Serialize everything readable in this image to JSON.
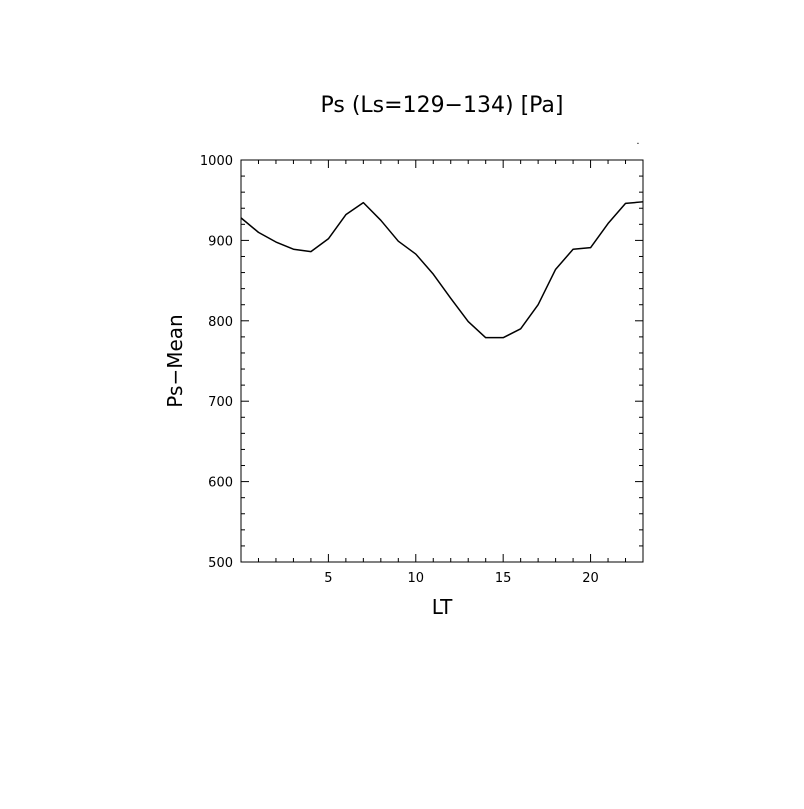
{
  "chart_data": {
    "type": "line",
    "title": "Ps (Ls=129−134) [Pa]",
    "xlabel": "LT",
    "ylabel": "Ps−Mean",
    "xlim": [
      0,
      23
    ],
    "ylim": [
      500,
      1000
    ],
    "x_ticks": [
      5,
      10,
      15,
      20
    ],
    "y_ticks": [
      500,
      600,
      700,
      800,
      900,
      1000
    ],
    "grid": false,
    "series": [
      {
        "x": [
          0,
          1,
          2,
          3,
          4,
          5,
          6,
          7,
          8,
          9,
          10,
          11,
          12,
          13,
          14,
          15,
          16,
          17,
          18,
          19,
          20,
          21,
          22,
          23
        ],
        "values": [
          928,
          910,
          898,
          889,
          886,
          902,
          932,
          947,
          925,
          899,
          883,
          858,
          828,
          799,
          779,
          779,
          790,
          820,
          864,
          889,
          891,
          921,
          946,
          948
        ]
      }
    ],
    "line_color": "#000000"
  }
}
